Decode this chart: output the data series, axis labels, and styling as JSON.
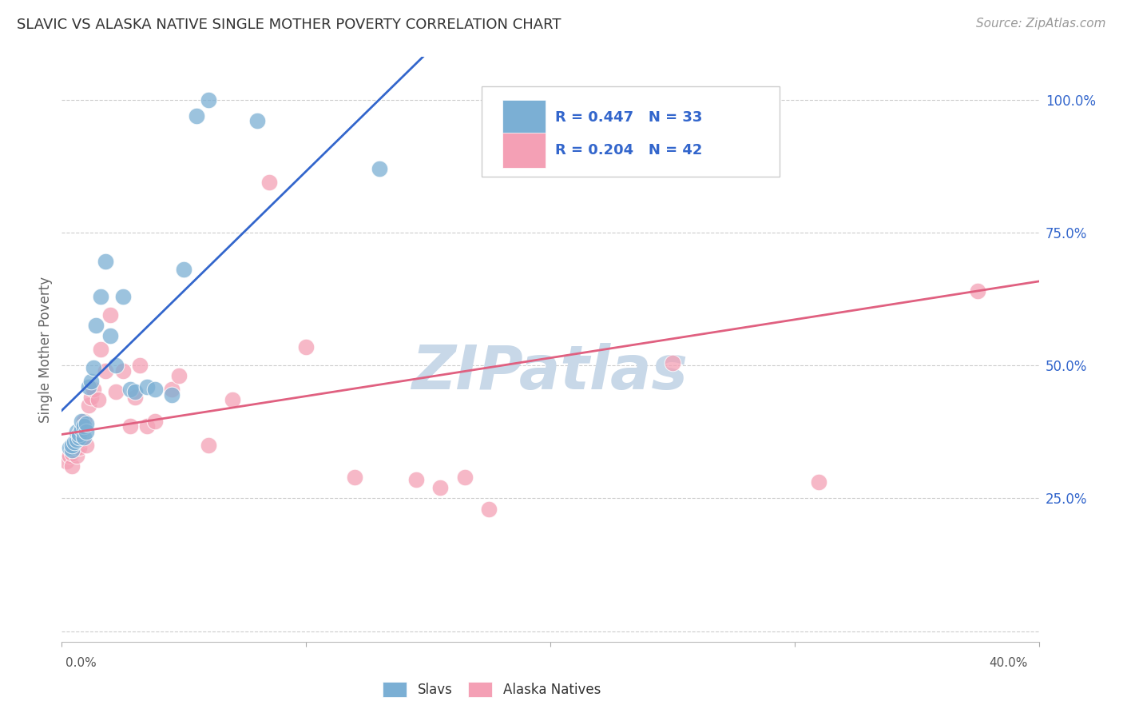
{
  "title": "SLAVIC VS ALASKA NATIVE SINGLE MOTHER POVERTY CORRELATION CHART",
  "source": "Source: ZipAtlas.com",
  "ylabel": "Single Mother Poverty",
  "xlim": [
    0.0,
    0.4
  ],
  "ylim": [
    -0.02,
    1.08
  ],
  "yticks": [
    0.0,
    0.25,
    0.5,
    0.75,
    1.0
  ],
  "ytick_labels": [
    "",
    "25.0%",
    "50.0%",
    "75.0%",
    "100.0%"
  ],
  "watermark": "ZIPatlas",
  "slavs_x": [
    0.003,
    0.004,
    0.004,
    0.005,
    0.006,
    0.006,
    0.007,
    0.007,
    0.008,
    0.008,
    0.009,
    0.009,
    0.01,
    0.01,
    0.011,
    0.012,
    0.013,
    0.014,
    0.016,
    0.018,
    0.02,
    0.022,
    0.025,
    0.028,
    0.03,
    0.035,
    0.038,
    0.045,
    0.05,
    0.055,
    0.06,
    0.08,
    0.13
  ],
  "slavs_y": [
    0.345,
    0.34,
    0.35,
    0.355,
    0.36,
    0.375,
    0.365,
    0.37,
    0.38,
    0.395,
    0.365,
    0.385,
    0.375,
    0.39,
    0.46,
    0.47,
    0.495,
    0.575,
    0.63,
    0.695,
    0.555,
    0.5,
    0.63,
    0.455,
    0.45,
    0.46,
    0.455,
    0.445,
    0.68,
    0.97,
    1.0,
    0.96,
    0.87
  ],
  "alaska_x": [
    0.002,
    0.003,
    0.004,
    0.004,
    0.005,
    0.005,
    0.006,
    0.006,
    0.007,
    0.007,
    0.008,
    0.008,
    0.009,
    0.01,
    0.011,
    0.012,
    0.013,
    0.015,
    0.016,
    0.018,
    0.02,
    0.022,
    0.025,
    0.028,
    0.03,
    0.032,
    0.035,
    0.038,
    0.045,
    0.048,
    0.06,
    0.07,
    0.085,
    0.1,
    0.12,
    0.145,
    0.155,
    0.165,
    0.175,
    0.25,
    0.31,
    0.375
  ],
  "alaska_y": [
    0.32,
    0.33,
    0.31,
    0.335,
    0.34,
    0.35,
    0.33,
    0.345,
    0.355,
    0.345,
    0.36,
    0.375,
    0.395,
    0.35,
    0.425,
    0.44,
    0.455,
    0.435,
    0.53,
    0.49,
    0.595,
    0.45,
    0.49,
    0.385,
    0.44,
    0.5,
    0.385,
    0.395,
    0.455,
    0.48,
    0.35,
    0.435,
    0.845,
    0.535,
    0.29,
    0.285,
    0.27,
    0.29,
    0.23,
    0.505,
    0.28,
    0.64
  ],
  "slavs_color": "#7bafd4",
  "alaska_color": "#f4a0b5",
  "slavs_line_color": "#3366cc",
  "alaska_line_color": "#e06080",
  "background_color": "#ffffff",
  "grid_color": "#cccccc",
  "watermark_color": "#c8d8e8",
  "R_slavs": 0.447,
  "N_slavs": 33,
  "R_alaska": 0.204,
  "N_alaska": 42,
  "slavs_intercept": 0.415,
  "slavs_slope": 4.5,
  "alaska_intercept": 0.37,
  "alaska_slope": 0.72
}
